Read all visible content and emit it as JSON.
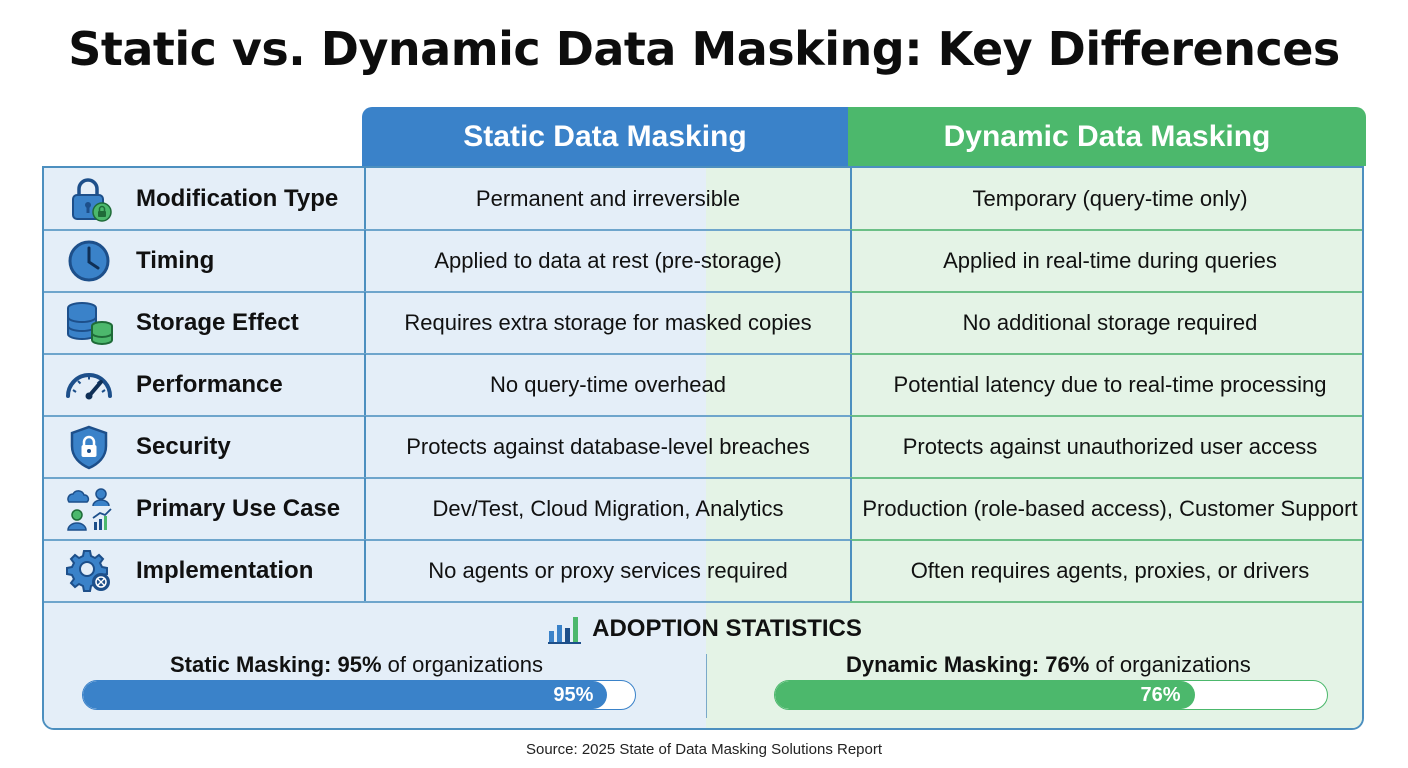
{
  "title": "Static vs. Dynamic Data Masking: Key Differences",
  "columns": {
    "static": "Static Data Masking",
    "dynamic": "Dynamic Data Masking"
  },
  "rows": [
    {
      "icon": "lock-icon",
      "label": "Modification Type",
      "static": "Permanent and irreversible",
      "dynamic": "Temporary (query-time only)"
    },
    {
      "icon": "clock-icon",
      "label": "Timing",
      "static": "Applied to data at rest (pre-storage)",
      "dynamic": "Applied in real-time during queries"
    },
    {
      "icon": "database-icon",
      "label": "Storage Effect",
      "static": "Requires extra storage for masked copies",
      "dynamic": "No additional storage required"
    },
    {
      "icon": "speedometer-icon",
      "label": "Performance",
      "static": "No query-time overhead",
      "dynamic": "Potential latency due to real-time processing"
    },
    {
      "icon": "shield-lock-icon",
      "label": "Security",
      "static": "Protects against database-level breaches",
      "dynamic": "Protects against unauthorized user access"
    },
    {
      "icon": "use-case-icon",
      "label": "Primary Use Case",
      "static": "Dev/Test, Cloud Migration, Analytics",
      "dynamic": "Production (role-based access), Customer Support"
    },
    {
      "icon": "gear-icon",
      "label": "Implementation",
      "static": "No agents or proxy services required",
      "dynamic": "Often requires agents, proxies, or drivers"
    }
  ],
  "stats": {
    "title": "ADOPTION STATISTICS",
    "static": {
      "name": "Static Masking:",
      "pct_text": "95%",
      "suffix": "of organizations",
      "bar_label": "95%",
      "value": 95
    },
    "dynamic": {
      "name": "Dynamic Masking:",
      "pct_text": "76%",
      "suffix": "of organizations",
      "bar_label": "76%",
      "value": 76
    }
  },
  "colors": {
    "static": "#3a82c9",
    "dynamic": "#4cb86c"
  },
  "source": "Source: 2025 State of Data Masking Solutions Report"
}
